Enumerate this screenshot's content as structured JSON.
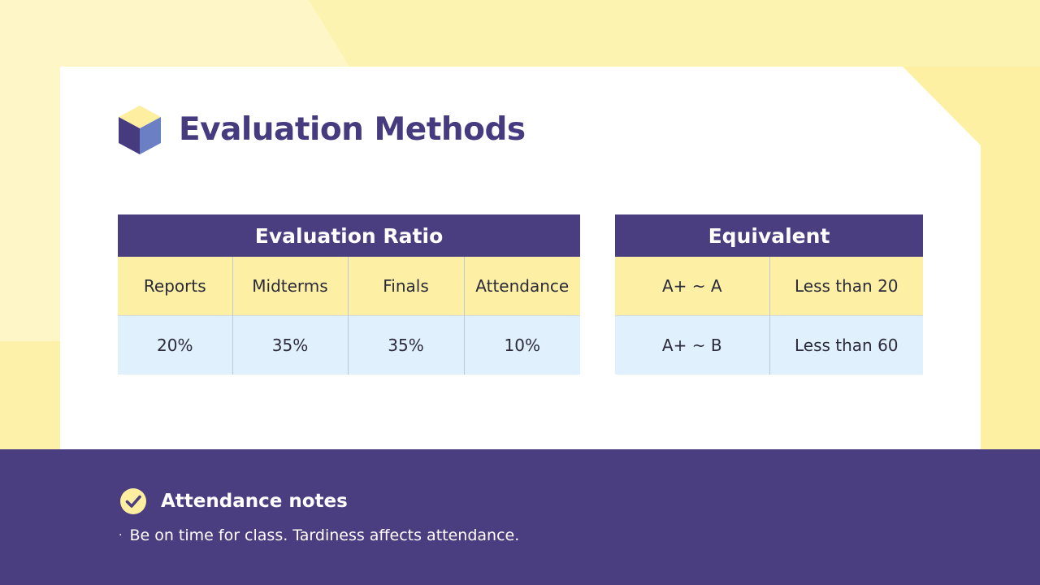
{
  "title": "Evaluation Methods",
  "ratio_table": {
    "header": "Evaluation Ratio",
    "columns": [
      "Reports",
      "Midterms",
      "Finals",
      "Attendance"
    ],
    "values": [
      "20%",
      "35%",
      "35%",
      "10%"
    ]
  },
  "equivalent_table": {
    "header": "Equivalent",
    "rows": [
      [
        "A+ ~ A",
        "Less than 20"
      ],
      [
        "A+ ~ B",
        "Less than 60"
      ]
    ]
  },
  "notes": {
    "heading": "Attendance notes",
    "bullet": "·",
    "text": "Be on time for class. Tardiness affects attendance."
  },
  "icons": {
    "title_icon": "cube-icon",
    "notes_icon": "check-circle-icon"
  },
  "colors": {
    "primary": "#4a3d80",
    "title_text": "#473b80",
    "header_row": "#fdf0a5",
    "value_row": "#e1f0fd",
    "background": "#fdf3b0"
  }
}
